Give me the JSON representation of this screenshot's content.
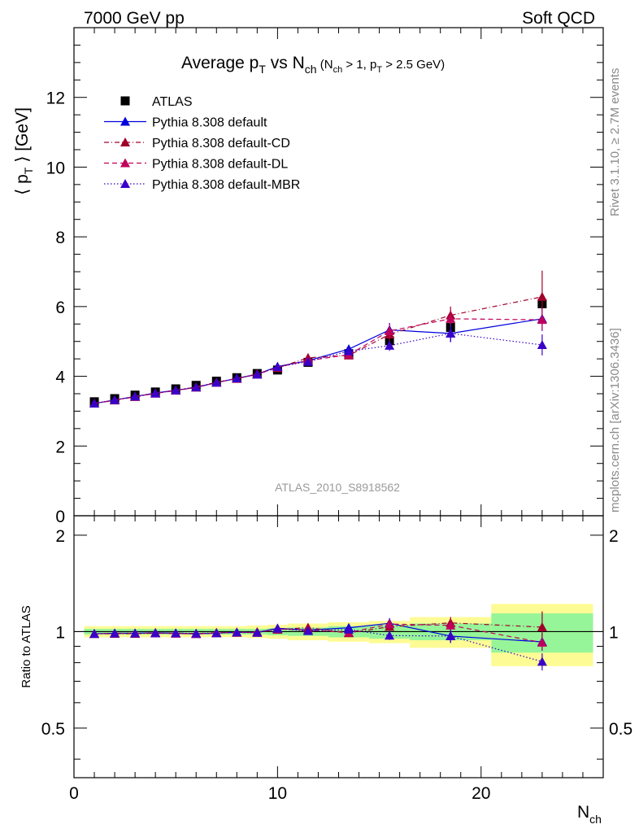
{
  "header": {
    "left": "7000 GeV pp",
    "right": "Soft QCD"
  },
  "side_text": {
    "rivet": "Rivet 3.1.10, ≥ 2.7M events",
    "mcplots": "mcplots.cern.ch [arXiv:1306.3436]"
  },
  "chart_data": {
    "type": "scatter",
    "title": "Average p_T vs N_ch (N_ch > 1, p_T > 2.5 GeV)",
    "title_parts": {
      "main": "Average p",
      "main_sub": "T",
      "vs": " vs N",
      "vs_sub": "ch",
      "cond_1": " (N",
      "cond_1_sub": "ch",
      "cond_2": " > 1, p",
      "cond_2_sub": "T",
      "cond_3": " > 2.5 GeV)"
    },
    "analysis_label": "ATLAS_2010_S8918562",
    "xlabel": "N_ch",
    "xlabel_main": "N",
    "xlabel_sub": "ch",
    "ylabel": "⟨ p_T ⟩ [GeV]",
    "ylabel_parts": {
      "open": "⟨ p",
      "sub": "T",
      "close": " ⟩ [GeV]"
    },
    "ratio_ylabel": "Ratio to ATLAS",
    "xlim": [
      0,
      26
    ],
    "ylim": [
      0,
      14
    ],
    "ratio_ylim": [
      0.35,
      2.3
    ],
    "ratio_scale": "log",
    "x_ticks": [
      0,
      10,
      20
    ],
    "y_ticks": [
      0,
      2,
      4,
      6,
      8,
      10,
      12
    ],
    "ratio_ticks": [
      0.5,
      1,
      2
    ],
    "legend_position": "top-left",
    "x": [
      1,
      2,
      3,
      4,
      5,
      6,
      7,
      8,
      9,
      10,
      11.5,
      13.5,
      15.5,
      18.5,
      23
    ],
    "x_bins": [
      [
        0.5,
        1.5
      ],
      [
        1.5,
        2.5
      ],
      [
        2.5,
        3.5
      ],
      [
        3.5,
        4.5
      ],
      [
        4.5,
        5.5
      ],
      [
        5.5,
        6.5
      ],
      [
        6.5,
        7.5
      ],
      [
        7.5,
        8.5
      ],
      [
        8.5,
        9.5
      ],
      [
        9.5,
        10.5
      ],
      [
        10.5,
        12.5
      ],
      [
        12.5,
        14.5
      ],
      [
        14.5,
        16.5
      ],
      [
        16.5,
        20.5
      ],
      [
        20.5,
        25.5
      ]
    ],
    "series": [
      {
        "name": "ATLAS",
        "color": "#000000",
        "marker": "square",
        "line": "none",
        "values": [
          3.27,
          3.36,
          3.46,
          3.55,
          3.64,
          3.74,
          3.86,
          3.96,
          4.08,
          4.18,
          4.4,
          4.65,
          5.02,
          5.4,
          6.08
        ],
        "uncertainty_ratio_inner": [
          0.02,
          0.02,
          0.02,
          0.02,
          0.02,
          0.02,
          0.02,
          0.02,
          0.02,
          0.025,
          0.03,
          0.04,
          0.05,
          0.06,
          0.14
        ],
        "uncertainty_ratio_outer": [
          0.04,
          0.04,
          0.04,
          0.04,
          0.04,
          0.04,
          0.04,
          0.04,
          0.045,
          0.05,
          0.06,
          0.07,
          0.08,
          0.11,
          0.22
        ]
      },
      {
        "name": "Pythia 8.308 default",
        "color": "#0000dd",
        "marker": "triangle",
        "line": "solid",
        "values": [
          3.22,
          3.32,
          3.42,
          3.52,
          3.6,
          3.68,
          3.82,
          3.94,
          4.06,
          4.28,
          4.45,
          4.78,
          5.33,
          5.23,
          5.65
        ],
        "errors": [
          0.02,
          0.02,
          0.02,
          0.02,
          0.02,
          0.02,
          0.02,
          0.03,
          0.04,
          0.05,
          0.08,
          0.1,
          0.2,
          0.25,
          0.35
        ]
      },
      {
        "name": "Pythia 8.308 default-CD",
        "color": "#a0002a",
        "marker": "triangle",
        "line": "dashdot",
        "values": [
          3.22,
          3.31,
          3.41,
          3.51,
          3.6,
          3.69,
          3.83,
          3.93,
          4.07,
          4.24,
          4.53,
          4.6,
          5.2,
          5.75,
          6.28
        ],
        "errors": [
          0.02,
          0.02,
          0.02,
          0.02,
          0.02,
          0.02,
          0.02,
          0.03,
          0.04,
          0.05,
          0.08,
          0.1,
          0.2,
          0.25,
          0.75
        ]
      },
      {
        "name": "Pythia 8.308 default-DL",
        "color": "#c0005a",
        "marker": "triangle",
        "line": "dashed",
        "values": [
          3.22,
          3.32,
          3.42,
          3.51,
          3.59,
          3.68,
          3.82,
          3.94,
          4.05,
          4.26,
          4.45,
          4.62,
          5.3,
          5.65,
          5.62
        ],
        "errors": [
          0.02,
          0.02,
          0.02,
          0.02,
          0.02,
          0.02,
          0.02,
          0.03,
          0.04,
          0.05,
          0.08,
          0.1,
          0.2,
          0.25,
          0.3
        ]
      },
      {
        "name": "Pythia 8.308 default-MBR",
        "color": "#3a00c8",
        "marker": "triangle",
        "line": "dotted",
        "values": [
          3.22,
          3.32,
          3.42,
          3.51,
          3.6,
          3.69,
          3.82,
          3.94,
          4.05,
          4.27,
          4.42,
          4.72,
          4.88,
          5.23,
          4.9
        ],
        "errors": [
          0.02,
          0.02,
          0.02,
          0.02,
          0.02,
          0.02,
          0.02,
          0.03,
          0.04,
          0.05,
          0.08,
          0.1,
          0.15,
          0.25,
          0.3
        ]
      }
    ]
  }
}
